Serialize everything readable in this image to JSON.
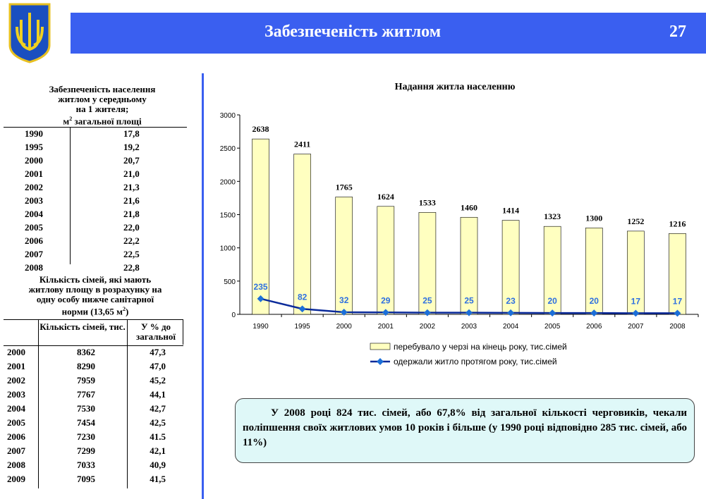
{
  "header": {
    "title": "Забезпеченість житлом",
    "page": "27"
  },
  "table1": {
    "title": [
      "Забезпеченість населення",
      "житлом у середньому",
      "на 1 жителя;"
    ],
    "unit": "м",
    "unit_sup": "2",
    "unit_rest": "загальної площі",
    "rows": [
      [
        "1990",
        "17,8"
      ],
      [
        "1995",
        "19,2"
      ],
      [
        "2000",
        "20,7"
      ],
      [
        "2001",
        "21,0"
      ],
      [
        "2002",
        "21,3"
      ],
      [
        "2003",
        "21,6"
      ],
      [
        "2004",
        "21,8"
      ],
      [
        "2005",
        "22,0"
      ],
      [
        "2006",
        "22,2"
      ],
      [
        "2007",
        "22,5"
      ],
      [
        "2008",
        "22,8"
      ]
    ]
  },
  "table2": {
    "title": [
      "Кількість сімей, які мають",
      "житлову площу в розрахунку на",
      "одну особу нижче санітарної"
    ],
    "title_end": "норми (13,65 м",
    "title_sup": "2",
    "title_close": ")",
    "headers": [
      "Кількість сімей, тис.",
      "У % до загальної"
    ],
    "rows": [
      [
        "2000",
        "8362",
        "47,3"
      ],
      [
        "2001",
        "8290",
        "47,0"
      ],
      [
        "2002",
        "7959",
        "45,2"
      ],
      [
        "2003",
        "7767",
        "44,1"
      ],
      [
        "2004",
        "7530",
        "42,7"
      ],
      [
        "2005",
        "7454",
        "42,5"
      ],
      [
        "2006",
        "7230",
        "41.5"
      ],
      [
        "2007",
        "7299",
        "42,1"
      ],
      [
        "2008",
        "7033",
        "40,9"
      ],
      [
        "2009",
        "7095",
        "41,5"
      ]
    ]
  },
  "chart_data": {
    "type": "bar",
    "title": "Надання житла населенню",
    "categories": [
      "1990",
      "1995",
      "2000",
      "2001",
      "2002",
      "2003",
      "2004",
      "2005",
      "2006",
      "2007",
      "2008"
    ],
    "series": [
      {
        "name": "перебувало у черзі на кінець року, тис.сімей",
        "type": "bar",
        "color": "#ffffc0",
        "values": [
          2638,
          2411,
          1765,
          1624,
          1533,
          1460,
          1414,
          1323,
          1300,
          1252,
          1216
        ]
      },
      {
        "name": "одержали житло протягом року, тис.сімей",
        "type": "line",
        "color": "#0a2a9a",
        "values": [
          235,
          82,
          32,
          29,
          25,
          25,
          23,
          20,
          20,
          17,
          17
        ]
      }
    ],
    "ylim": [
      0,
      3000
    ],
    "yticks": [
      0,
      500,
      1000,
      1500,
      2000,
      2500,
      3000
    ]
  },
  "note": "У 2008 році 824 тис. сімей, або 67,8% від загальної кількості черговиків, чекали поліпшення своїх житлових умов 10 років і більше (у 1990 році відповідно 285 тис. сімей, або 11%)"
}
